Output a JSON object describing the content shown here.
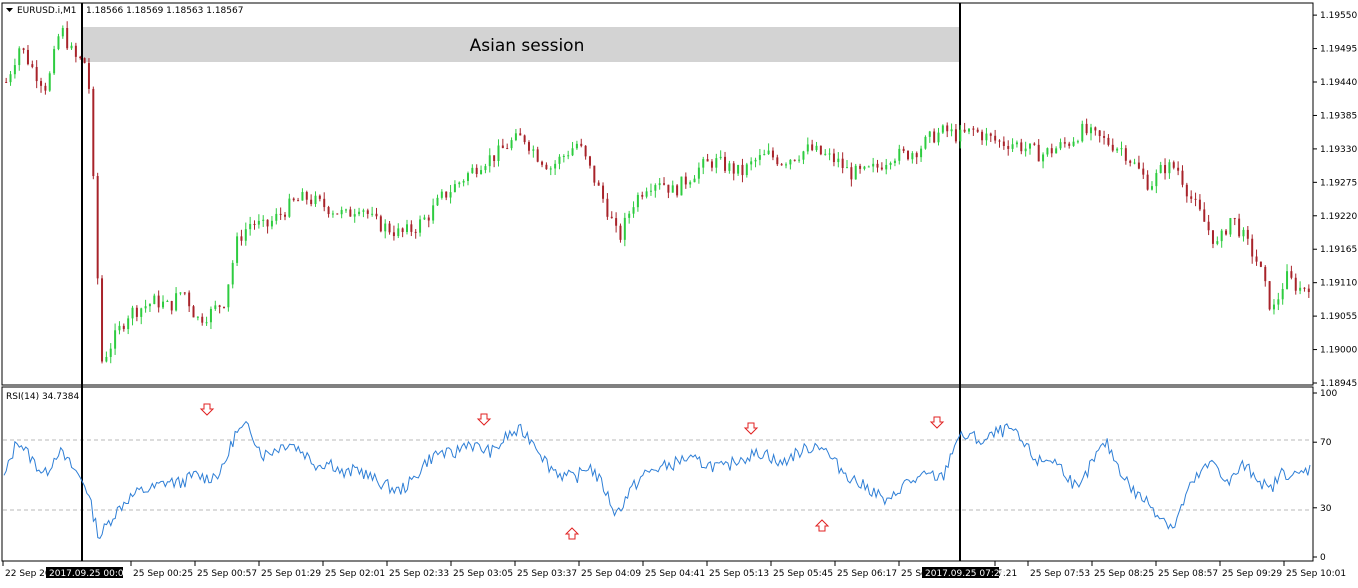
{
  "header": {
    "symbol": "EURUSD.i,M1",
    "ohlc": "1.18566 1.18569 1.18563 1.18567"
  },
  "session_label": "Asian session",
  "indicator": {
    "label": "RSI(14) 34.7384"
  },
  "colors": {
    "bull": "#2ecc40",
    "bear": "#a8232a",
    "rsi_line": "#2f7fd6",
    "arrow": "#e02020",
    "session_band": "#d3d3d3",
    "grid_dash": "#b9b9b9",
    "marker_box": "#000000"
  },
  "time_axis": {
    "labels": [
      "22 Sep 20",
      "25 Sep 00:25",
      "25 Sep 00:57",
      "25 Sep 01:29",
      "25 Sep 02:01",
      "25 Sep 02:33",
      "25 Sep 03:05",
      "25 Sep 03:37",
      "25 Sep 04:09",
      "25 Sep 04:41",
      "25 Sep 05:13",
      "25 Sep 05:45",
      "25 Sep 06:17",
      "25 Sep 06:4",
      "7:21",
      "25 Sep 07:53",
      "25 Sep 08:25",
      "25 Sep 08:57",
      "25 Sep 09:29",
      "25 Sep 10:01"
    ],
    "markers": [
      "2017.09.25 00:01",
      "2017.09.25 07:20"
    ]
  },
  "chart_data": [
    {
      "type": "candlestick",
      "title": "EURUSD.i,M1",
      "ylim": [
        1.18945,
        1.19565
      ],
      "y_ticks": [
        "1.19550",
        "1.19495",
        "1.19440",
        "1.19385",
        "1.19330",
        "1.19275",
        "1.19220",
        "1.19165",
        "1.19110",
        "1.19055",
        "1.19000",
        "1.18945"
      ],
      "close_path": [
        [
          0,
          1.1944
        ],
        [
          1,
          1.195
        ],
        [
          2,
          1.1946
        ],
        [
          3,
          1.1943
        ],
        [
          4,
          1.1953
        ],
        [
          5,
          1.1948
        ],
        [
          6,
          1.1947
        ],
        [
          7,
          1.1898
        ],
        [
          8,
          1.1902
        ],
        [
          9,
          1.1906
        ],
        [
          10,
          1.1907
        ],
        [
          11,
          1.1908
        ],
        [
          12,
          1.1907
        ],
        [
          13,
          1.191
        ],
        [
          14,
          1.1905
        ],
        [
          15,
          1.1906
        ],
        [
          16,
          1.1908
        ],
        [
          17,
          1.1918
        ],
        [
          18,
          1.1921
        ],
        [
          19,
          1.192
        ],
        [
          20,
          1.1922
        ],
        [
          21,
          1.1924
        ],
        [
          22,
          1.1925
        ],
        [
          23,
          1.1924
        ],
        [
          24,
          1.1923
        ],
        [
          25,
          1.1922
        ],
        [
          26,
          1.1924
        ],
        [
          27,
          1.1921
        ],
        [
          28,
          1.192
        ],
        [
          29,
          1.1919
        ],
        [
          30,
          1.192
        ],
        [
          31,
          1.1922
        ],
        [
          32,
          1.1925
        ],
        [
          33,
          1.1927
        ],
        [
          34,
          1.1929
        ],
        [
          35,
          1.1931
        ],
        [
          36,
          1.1932
        ],
        [
          37,
          1.1934
        ],
        [
          38,
          1.1935
        ],
        [
          39,
          1.1932
        ],
        [
          40,
          1.193
        ],
        [
          41,
          1.1932
        ],
        [
          42,
          1.1934
        ],
        [
          43,
          1.1929
        ],
        [
          44,
          1.1924
        ],
        [
          45,
          1.1918
        ],
        [
          46,
          1.1924
        ],
        [
          47,
          1.1927
        ],
        [
          48,
          1.1928
        ],
        [
          49,
          1.1926
        ],
        [
          50,
          1.1928
        ],
        [
          51,
          1.193
        ],
        [
          52,
          1.1931
        ],
        [
          53,
          1.193
        ],
        [
          54,
          1.1929
        ],
        [
          55,
          1.1931
        ],
        [
          56,
          1.1932
        ],
        [
          57,
          1.1931
        ],
        [
          58,
          1.1932
        ],
        [
          59,
          1.1933
        ],
        [
          60,
          1.1932
        ],
        [
          61,
          1.1931
        ],
        [
          62,
          1.1929
        ],
        [
          63,
          1.1929
        ],
        [
          64,
          1.193
        ],
        [
          65,
          1.1932
        ],
        [
          66,
          1.1932
        ],
        [
          67,
          1.1933
        ],
        [
          68,
          1.1935
        ],
        [
          69,
          1.1936
        ],
        [
          70,
          1.1935
        ],
        [
          71,
          1.1936
        ],
        [
          72,
          1.1935
        ],
        [
          73,
          1.1934
        ],
        [
          74,
          1.1934
        ],
        [
          75,
          1.1933
        ],
        [
          76,
          1.1932
        ],
        [
          77,
          1.1933
        ],
        [
          78,
          1.1934
        ],
        [
          79,
          1.1936
        ],
        [
          80,
          1.1935
        ],
        [
          81,
          1.1934
        ],
        [
          82,
          1.1933
        ],
        [
          83,
          1.193
        ],
        [
          84,
          1.1927
        ],
        [
          85,
          1.193
        ],
        [
          86,
          1.193
        ],
        [
          87,
          1.1925
        ],
        [
          88,
          1.1921
        ],
        [
          89,
          1.1917
        ],
        [
          90,
          1.1922
        ],
        [
          91,
          1.1918
        ],
        [
          92,
          1.1914
        ],
        [
          93,
          1.1906
        ],
        [
          94,
          1.1912
        ],
        [
          95,
          1.191
        ],
        [
          96,
          1.1911
        ]
      ]
    },
    {
      "type": "line",
      "title": "RSI(14) 34.7384",
      "ylim": [
        0,
        100
      ],
      "y_ticks": [
        "100",
        "70",
        "30",
        "0"
      ],
      "series": [
        {
          "values": [
            48,
            72,
            60,
            50,
            65,
            55,
            44,
            12,
            25,
            35,
            40,
            42,
            46,
            45,
            50,
            48,
            52,
            75,
            80,
            62,
            66,
            70,
            64,
            56,
            58,
            50,
            54,
            48,
            44,
            40,
            46,
            58,
            64,
            62,
            70,
            66,
            64,
            74,
            77,
            70,
            56,
            50,
            48,
            56,
            44,
            26,
            40,
            50,
            54,
            56,
            60,
            58,
            56,
            54,
            60,
            62,
            64,
            56,
            62,
            66,
            69,
            58,
            50,
            44,
            40,
            32,
            44,
            47,
            50,
            48,
            72,
            74,
            70,
            76,
            78,
            68,
            58,
            60,
            52,
            40,
            58,
            70,
            54,
            40,
            34,
            25,
            18,
            40,
            52,
            58,
            44,
            56,
            50,
            40,
            52,
            49,
            54
          ]
        }
      ]
    }
  ]
}
